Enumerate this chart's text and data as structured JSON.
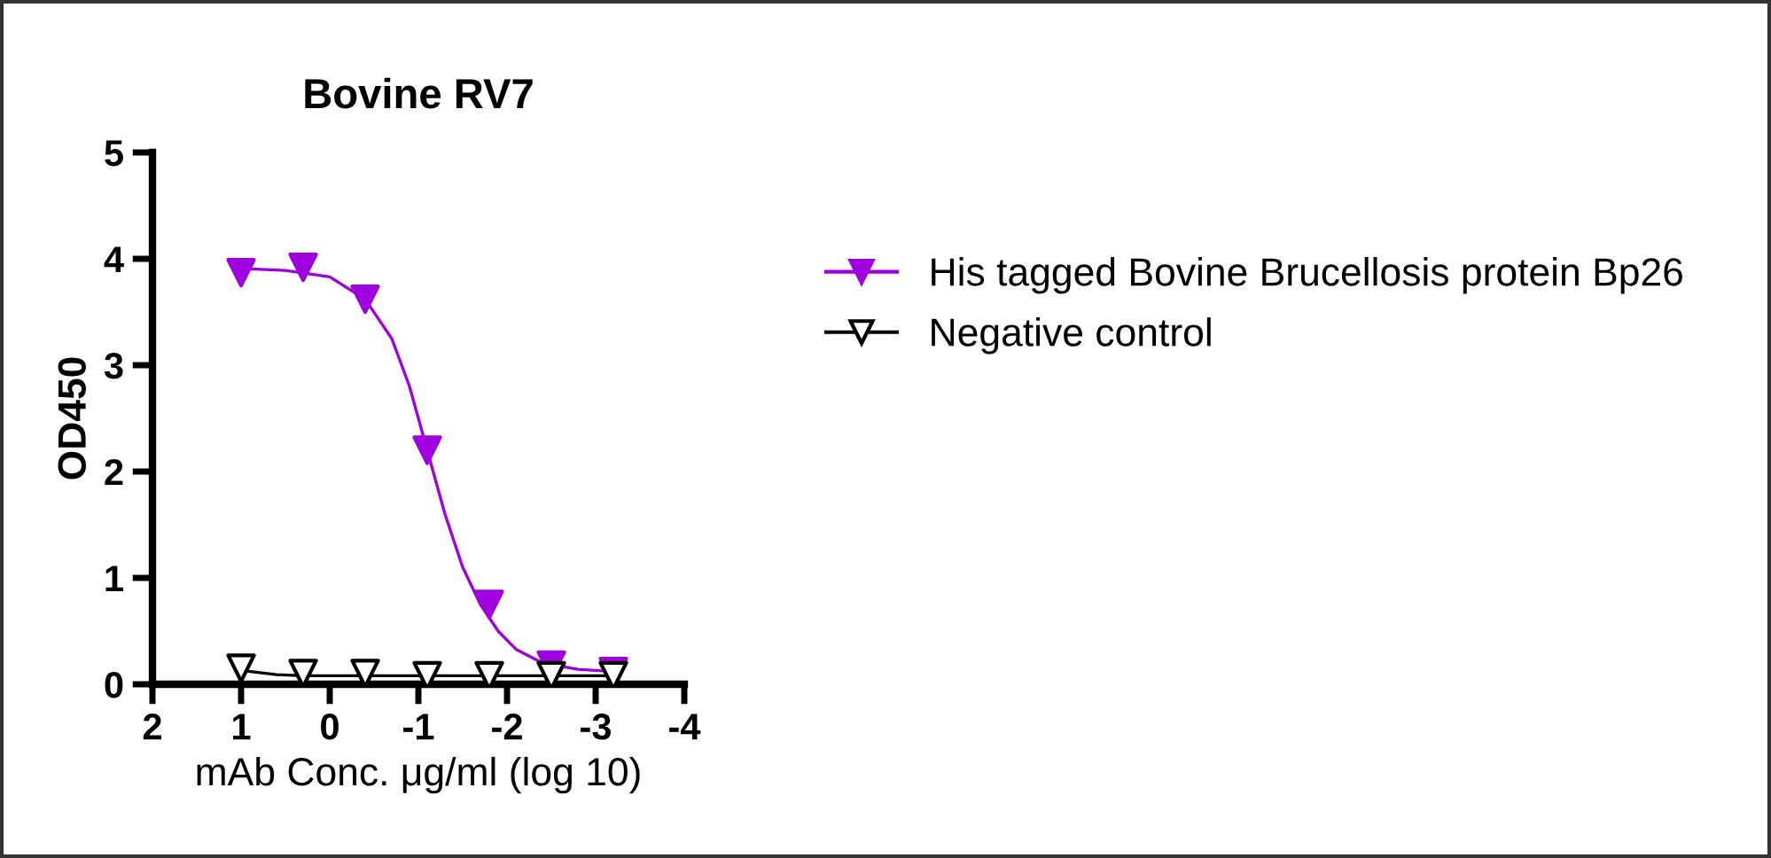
{
  "chart_data": {
    "type": "scatter",
    "title": "Bovine RV7",
    "xlabel": "mAb Conc. μg/ml (log 10)",
    "ylabel": "OD450",
    "x": [
      1.0,
      0.3,
      -0.4,
      -1.1,
      -1.8,
      -2.5,
      -3.2
    ],
    "series": [
      {
        "name": "His tagged Bovine Brucellosis protein Bp26",
        "color": "#a000e0",
        "marker": "triangle",
        "values": [
          3.87,
          3.92,
          3.62,
          2.2,
          0.75,
          0.18,
          0.12
        ]
      },
      {
        "name": "Negative control",
        "color": "#000000",
        "marker": "triangle",
        "values": [
          0.15,
          0.1,
          0.1,
          0.08,
          0.08,
          0.08,
          0.08
        ]
      },
      {
        "type": "line",
        "color": "#a000e0",
        "x": [
          1.0,
          0.5,
          0.0,
          -0.4,
          -0.7,
          -0.9,
          -1.1,
          -1.3,
          -1.5,
          -1.7,
          -1.9,
          -2.1,
          -2.4,
          -2.8,
          -3.2
        ],
        "values": [
          3.91,
          3.89,
          3.83,
          3.62,
          3.25,
          2.8,
          2.2,
          1.6,
          1.1,
          0.75,
          0.5,
          0.33,
          0.2,
          0.14,
          0.12
        ]
      },
      {
        "type": "line",
        "color": "#000000",
        "x": [
          1.0,
          0.6,
          0.3,
          -3.2
        ],
        "values": [
          0.13,
          0.09,
          0.08,
          0.08
        ]
      }
    ],
    "marker": "none",
    "line_style": "solid",
    "legend": "right",
    "grid": false,
    "xlim": [
      2,
      -4
    ],
    "xticks": [
      2,
      1,
      0,
      -1,
      -2,
      -3,
      -4
    ],
    "ylim": [
      0,
      5
    ],
    "yticks": [
      0,
      1,
      2,
      3,
      4,
      5
    ]
  }
}
